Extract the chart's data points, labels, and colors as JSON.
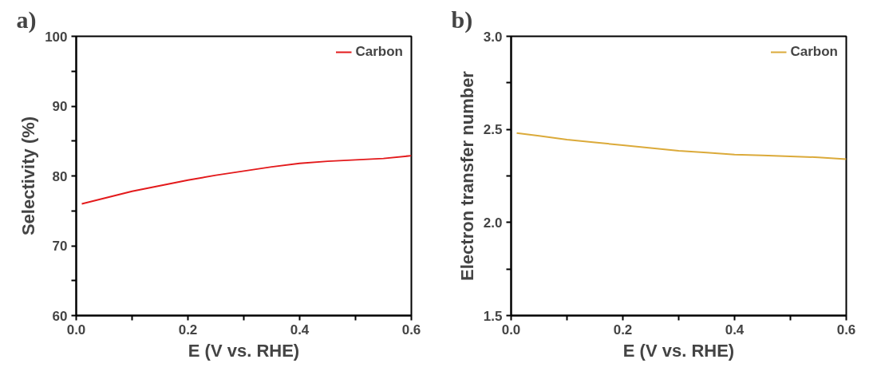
{
  "chart_data": [
    {
      "type": "line",
      "title": "a)",
      "xlabel": "E (V vs. RHE)",
      "ylabel": "Selectivity (%)",
      "legend": "top right",
      "grid": false,
      "marker": "none",
      "line_style": "solid",
      "x": [
        0.01,
        0.05,
        0.1,
        0.15,
        0.2,
        0.25,
        0.3,
        0.35,
        0.4,
        0.45,
        0.5,
        0.55,
        0.6
      ],
      "series": [
        {
          "name": "Carbon",
          "color": "#e31a1c",
          "values": [
            76.0,
            76.8,
            77.8,
            78.6,
            79.4,
            80.1,
            80.7,
            81.3,
            81.8,
            82.1,
            82.3,
            82.5,
            82.9
          ]
        }
      ],
      "xlim": [
        0,
        0.6
      ],
      "xticks": [
        {
          "value": 0,
          "label": "0.0"
        },
        {
          "value": 0.1,
          "label": null
        },
        {
          "value": 0.2,
          "label": "0.2"
        },
        {
          "value": 0.3,
          "label": null
        },
        {
          "value": 0.4,
          "label": "0.4"
        },
        {
          "value": 0.5,
          "label": null
        },
        {
          "value": 0.6,
          "label": "0.6"
        }
      ],
      "ylim": [
        60,
        100
      ],
      "yticks": [
        60,
        {
          "value": 65,
          "label": null
        },
        70,
        {
          "value": 75,
          "label": null
        },
        80,
        {
          "value": 85,
          "label": null
        },
        90,
        {
          "value": 95,
          "label": null
        },
        100
      ]
    },
    {
      "type": "line",
      "title": "b)",
      "xlabel": "E (V vs. RHE)",
      "ylabel": "Electron transfer number",
      "legend": "top right",
      "grid": false,
      "marker": "none",
      "line_style": "solid",
      "x": [
        0.01,
        0.05,
        0.1,
        0.15,
        0.2,
        0.25,
        0.3,
        0.35,
        0.4,
        0.45,
        0.5,
        0.55,
        0.6
      ],
      "series": [
        {
          "name": "Carbon",
          "color": "#dbaa3a",
          "values": [
            2.48,
            2.465,
            2.445,
            2.43,
            2.415,
            2.4,
            2.385,
            2.375,
            2.365,
            2.36,
            2.355,
            2.35,
            2.34
          ]
        }
      ],
      "xlim": [
        0,
        0.6
      ],
      "xticks": [
        {
          "value": 0,
          "label": "0.0"
        },
        {
          "value": 0.1,
          "label": null
        },
        {
          "value": 0.2,
          "label": "0.2"
        },
        {
          "value": 0.3,
          "label": null
        },
        {
          "value": 0.4,
          "label": "0.4"
        },
        {
          "value": 0.5,
          "label": null
        },
        {
          "value": 0.6,
          "label": "0.6"
        }
      ],
      "ylim": [
        1.5,
        3.0
      ],
      "yticks": [
        1.5,
        {
          "value": 1.75,
          "label": null
        },
        {
          "value": 2.0,
          "label": "2.0"
        },
        {
          "value": 2.25,
          "label": null
        },
        2.5,
        {
          "value": 2.75,
          "label": null
        },
        {
          "value": 3.0,
          "label": "3.0"
        }
      ]
    }
  ]
}
